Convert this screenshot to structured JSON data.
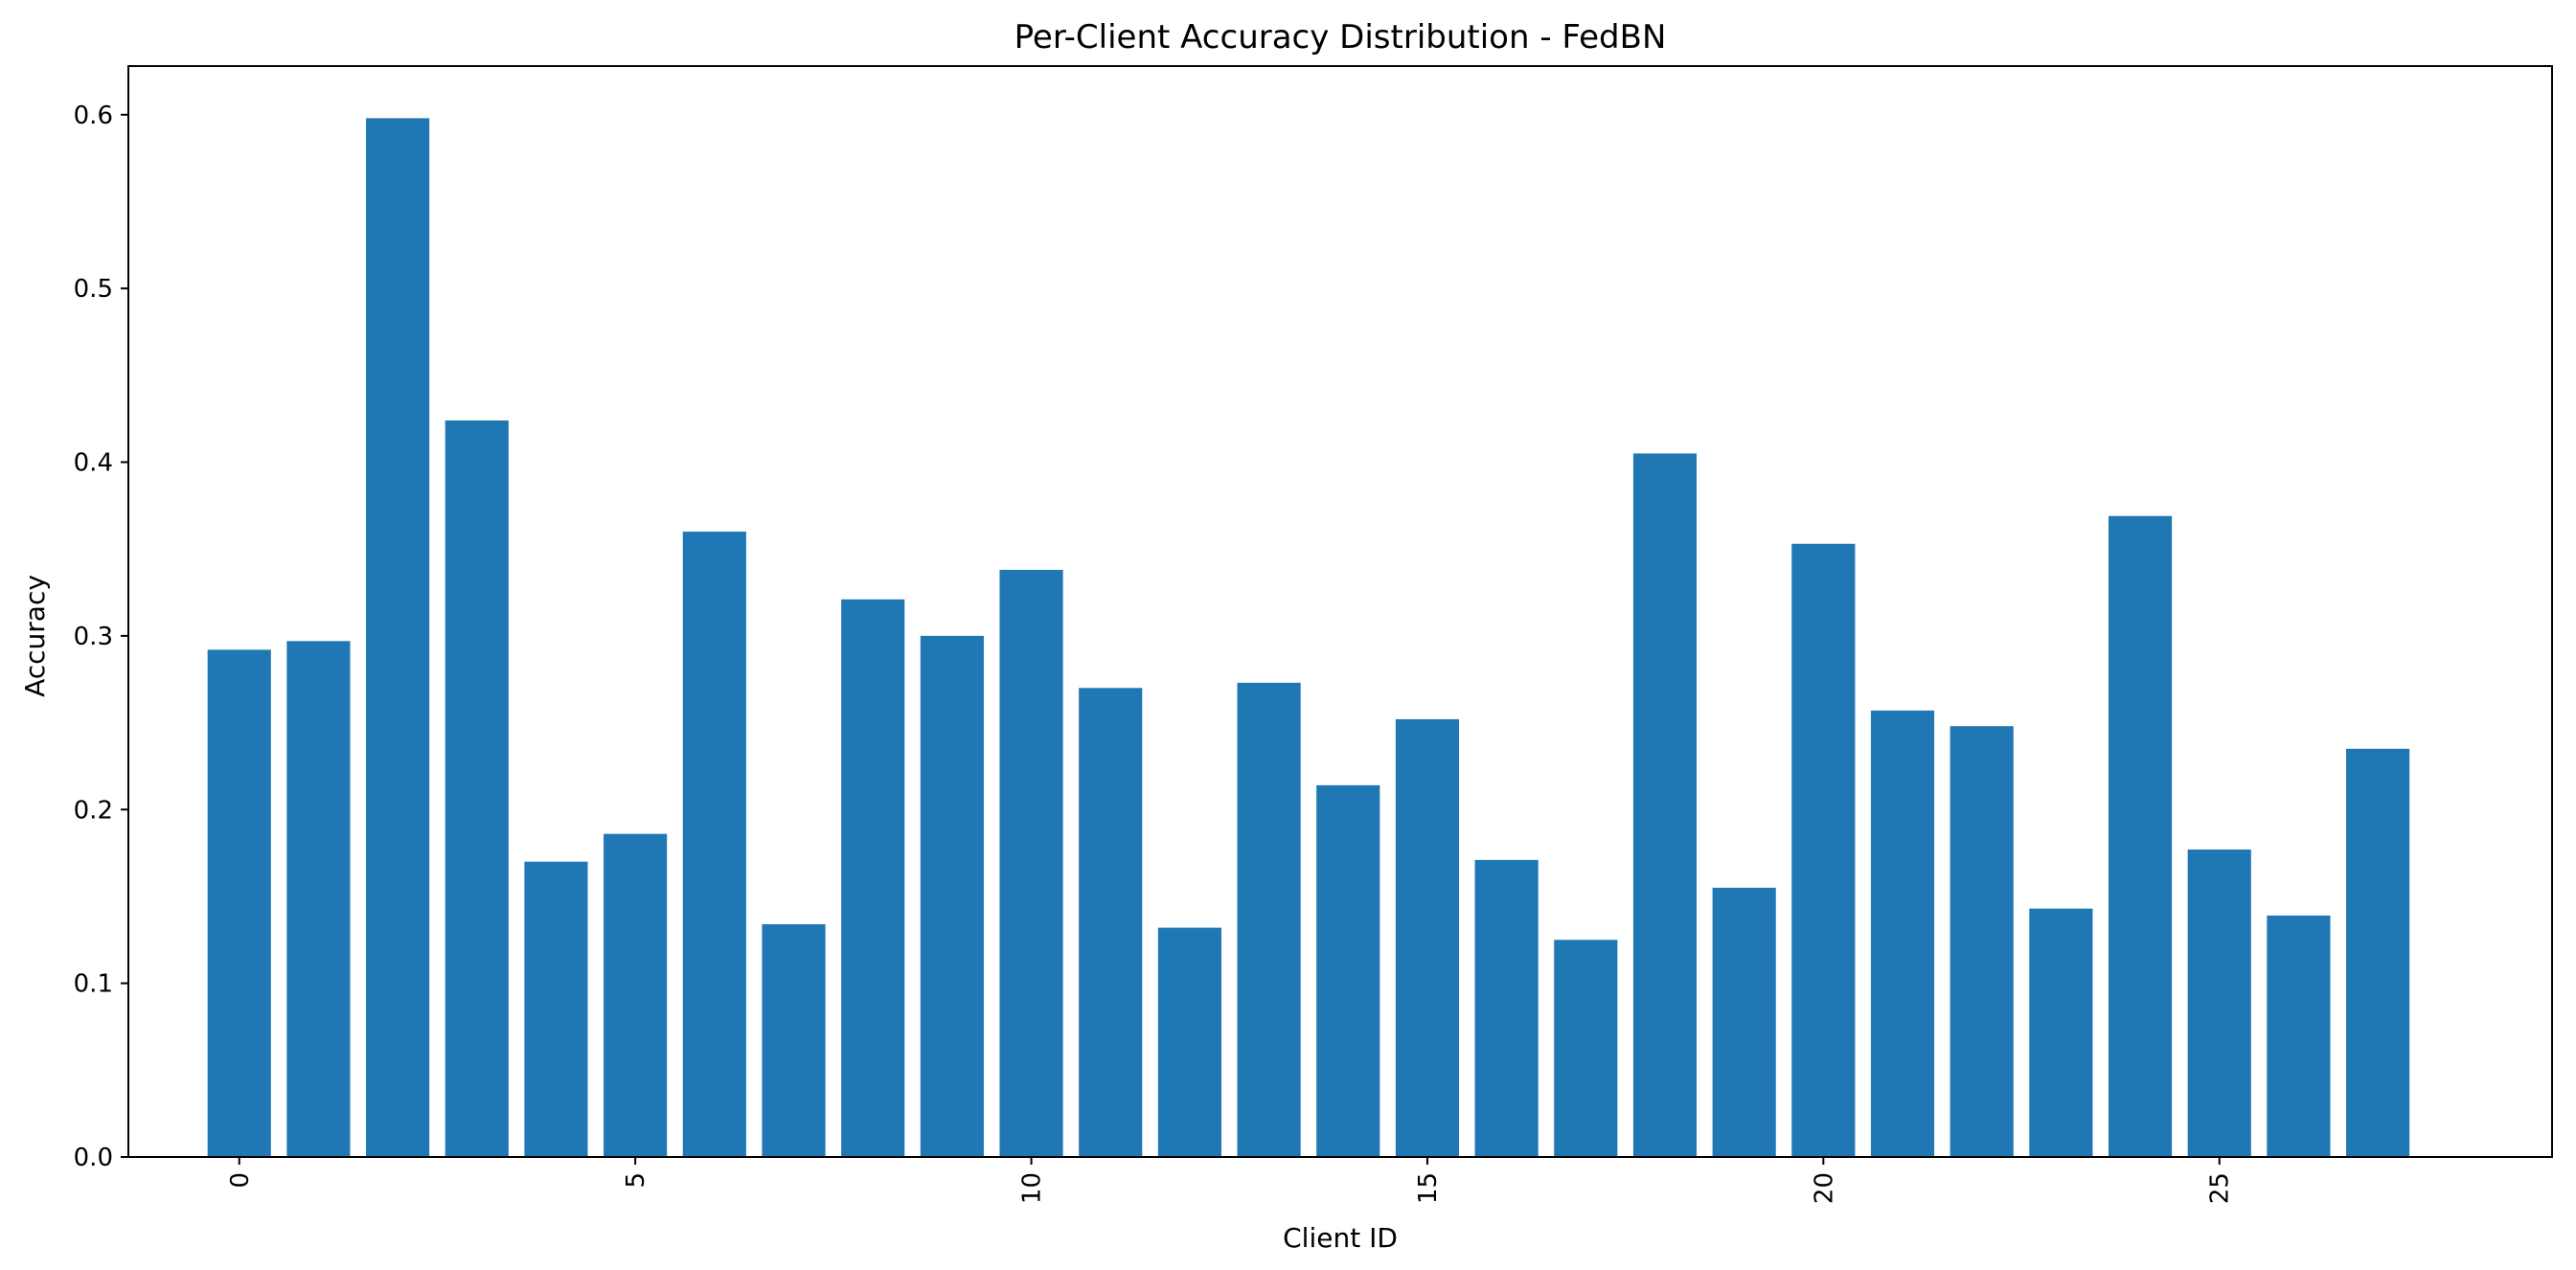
{
  "chart_data": {
    "type": "bar",
    "title": "Per-Client Accuracy Distribution - FedBN",
    "xlabel": "Client ID",
    "ylabel": "Accuracy",
    "categories": [
      0,
      1,
      2,
      3,
      4,
      5,
      6,
      7,
      8,
      9,
      10,
      11,
      12,
      13,
      14,
      15,
      16,
      17,
      18,
      19,
      20,
      21,
      22,
      23,
      24,
      25,
      26,
      27
    ],
    "values": [
      0.292,
      0.297,
      0.598,
      0.424,
      0.17,
      0.186,
      0.36,
      0.134,
      0.321,
      0.3,
      0.338,
      0.27,
      0.132,
      0.273,
      0.214,
      0.252,
      0.171,
      0.125,
      0.405,
      0.155,
      0.353,
      0.257,
      0.248,
      0.143,
      0.369,
      0.177,
      0.139,
      0.235
    ],
    "xlim": [
      -1.4,
      29.2
    ],
    "ylim": [
      0,
      0.628
    ],
    "xticks": [
      0,
      5,
      10,
      15,
      20,
      25
    ],
    "xtick_labels": [
      "0",
      "5",
      "10",
      "15",
      "20",
      "25"
    ],
    "yticks": [
      0.0,
      0.1,
      0.2,
      0.3,
      0.4,
      0.5,
      0.6
    ],
    "ytick_labels": [
      "0.0",
      "0.1",
      "0.2",
      "0.3",
      "0.4",
      "0.5",
      "0.6"
    ],
    "bar_color": "#1f77b4",
    "grid": false,
    "legend": "none"
  }
}
